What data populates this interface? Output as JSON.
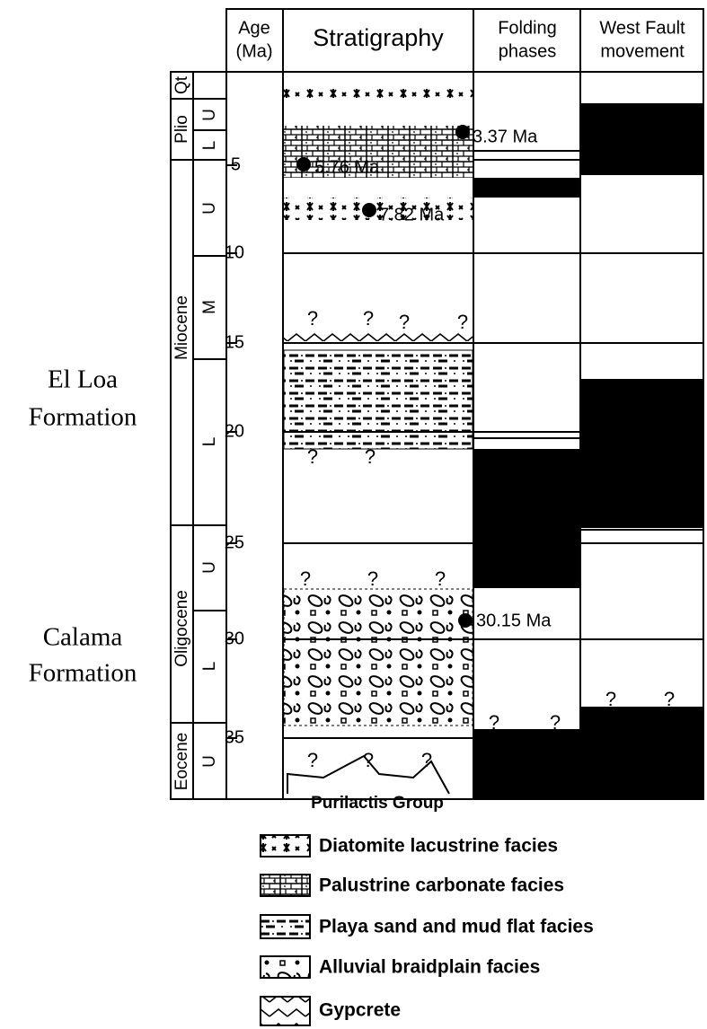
{
  "header": {
    "age": [
      "Age",
      "(Ma)"
    ],
    "stratigraphy": "Stratigraphy",
    "folding": [
      "Folding",
      "phases"
    ],
    "fault": [
      "West Fault",
      "movement"
    ]
  },
  "epochs": [
    "Qt",
    "Plio",
    "Miocene",
    "Oligocene",
    "Eocene"
  ],
  "subepochs": [
    "U",
    "L",
    "U",
    "M",
    "L",
    "U",
    "L",
    "U"
  ],
  "age_ticks": [
    "5",
    "10",
    "15",
    "20",
    "25",
    "30",
    "35"
  ],
  "dates": [
    "3.37 Ma",
    "5.76 Ma",
    "7.82 Ma",
    "30.15 Ma"
  ],
  "formations": [
    [
      "El Loa",
      "Formation"
    ],
    [
      "Calama",
      "Formation"
    ]
  ],
  "basement": "Purilactis Group",
  "uncertain": "?",
  "legend": [
    "Diatomite lacustrine facies",
    "Palustrine carbonate facies",
    "Playa sand and mud flat facies",
    "Alluvial braidplain facies",
    "Gypcrete"
  ]
}
